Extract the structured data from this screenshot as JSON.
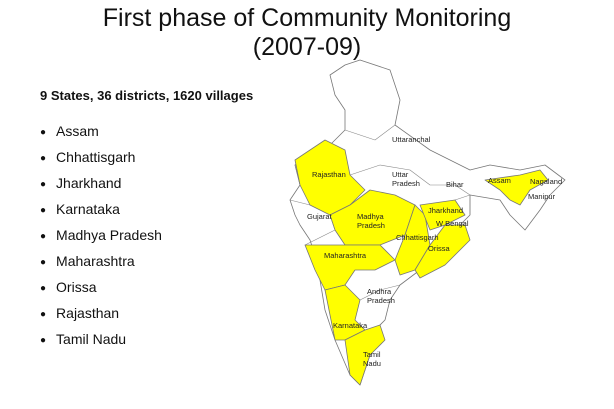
{
  "title": [
    "First phase of Community Monitoring",
    "(2007-09)"
  ],
  "summary": "9 States, 36 districts, 1620 villages",
  "states": [
    "Assam",
    "Chhattisgarh",
    "Jharkhand",
    "Karnataka",
    "Madhya Pradesh",
    "Maharashtra",
    "Orissa",
    "Rajasthan",
    "Tamil Nadu"
  ],
  "map_labels": [
    [
      "Uttaranchal"
    ],
    [
      "Rajasthan"
    ],
    [
      "Uttar",
      "Pradesh"
    ],
    [
      "Bihar"
    ],
    [
      "Assam"
    ],
    [
      "Nagaland"
    ],
    [
      "Manipur"
    ],
    [
      "Gujarat"
    ],
    [
      "Madhya",
      "Pradesh"
    ],
    [
      "Jharkhand"
    ],
    [
      "W Bengal"
    ],
    [
      "Chhattisgarh"
    ],
    [
      "Orissa"
    ],
    [
      "Maharashtra"
    ],
    [
      "Andhra",
      "Pradesh"
    ],
    [
      "Karnataka"
    ],
    [
      "Tamil",
      "Nadu"
    ]
  ]
}
